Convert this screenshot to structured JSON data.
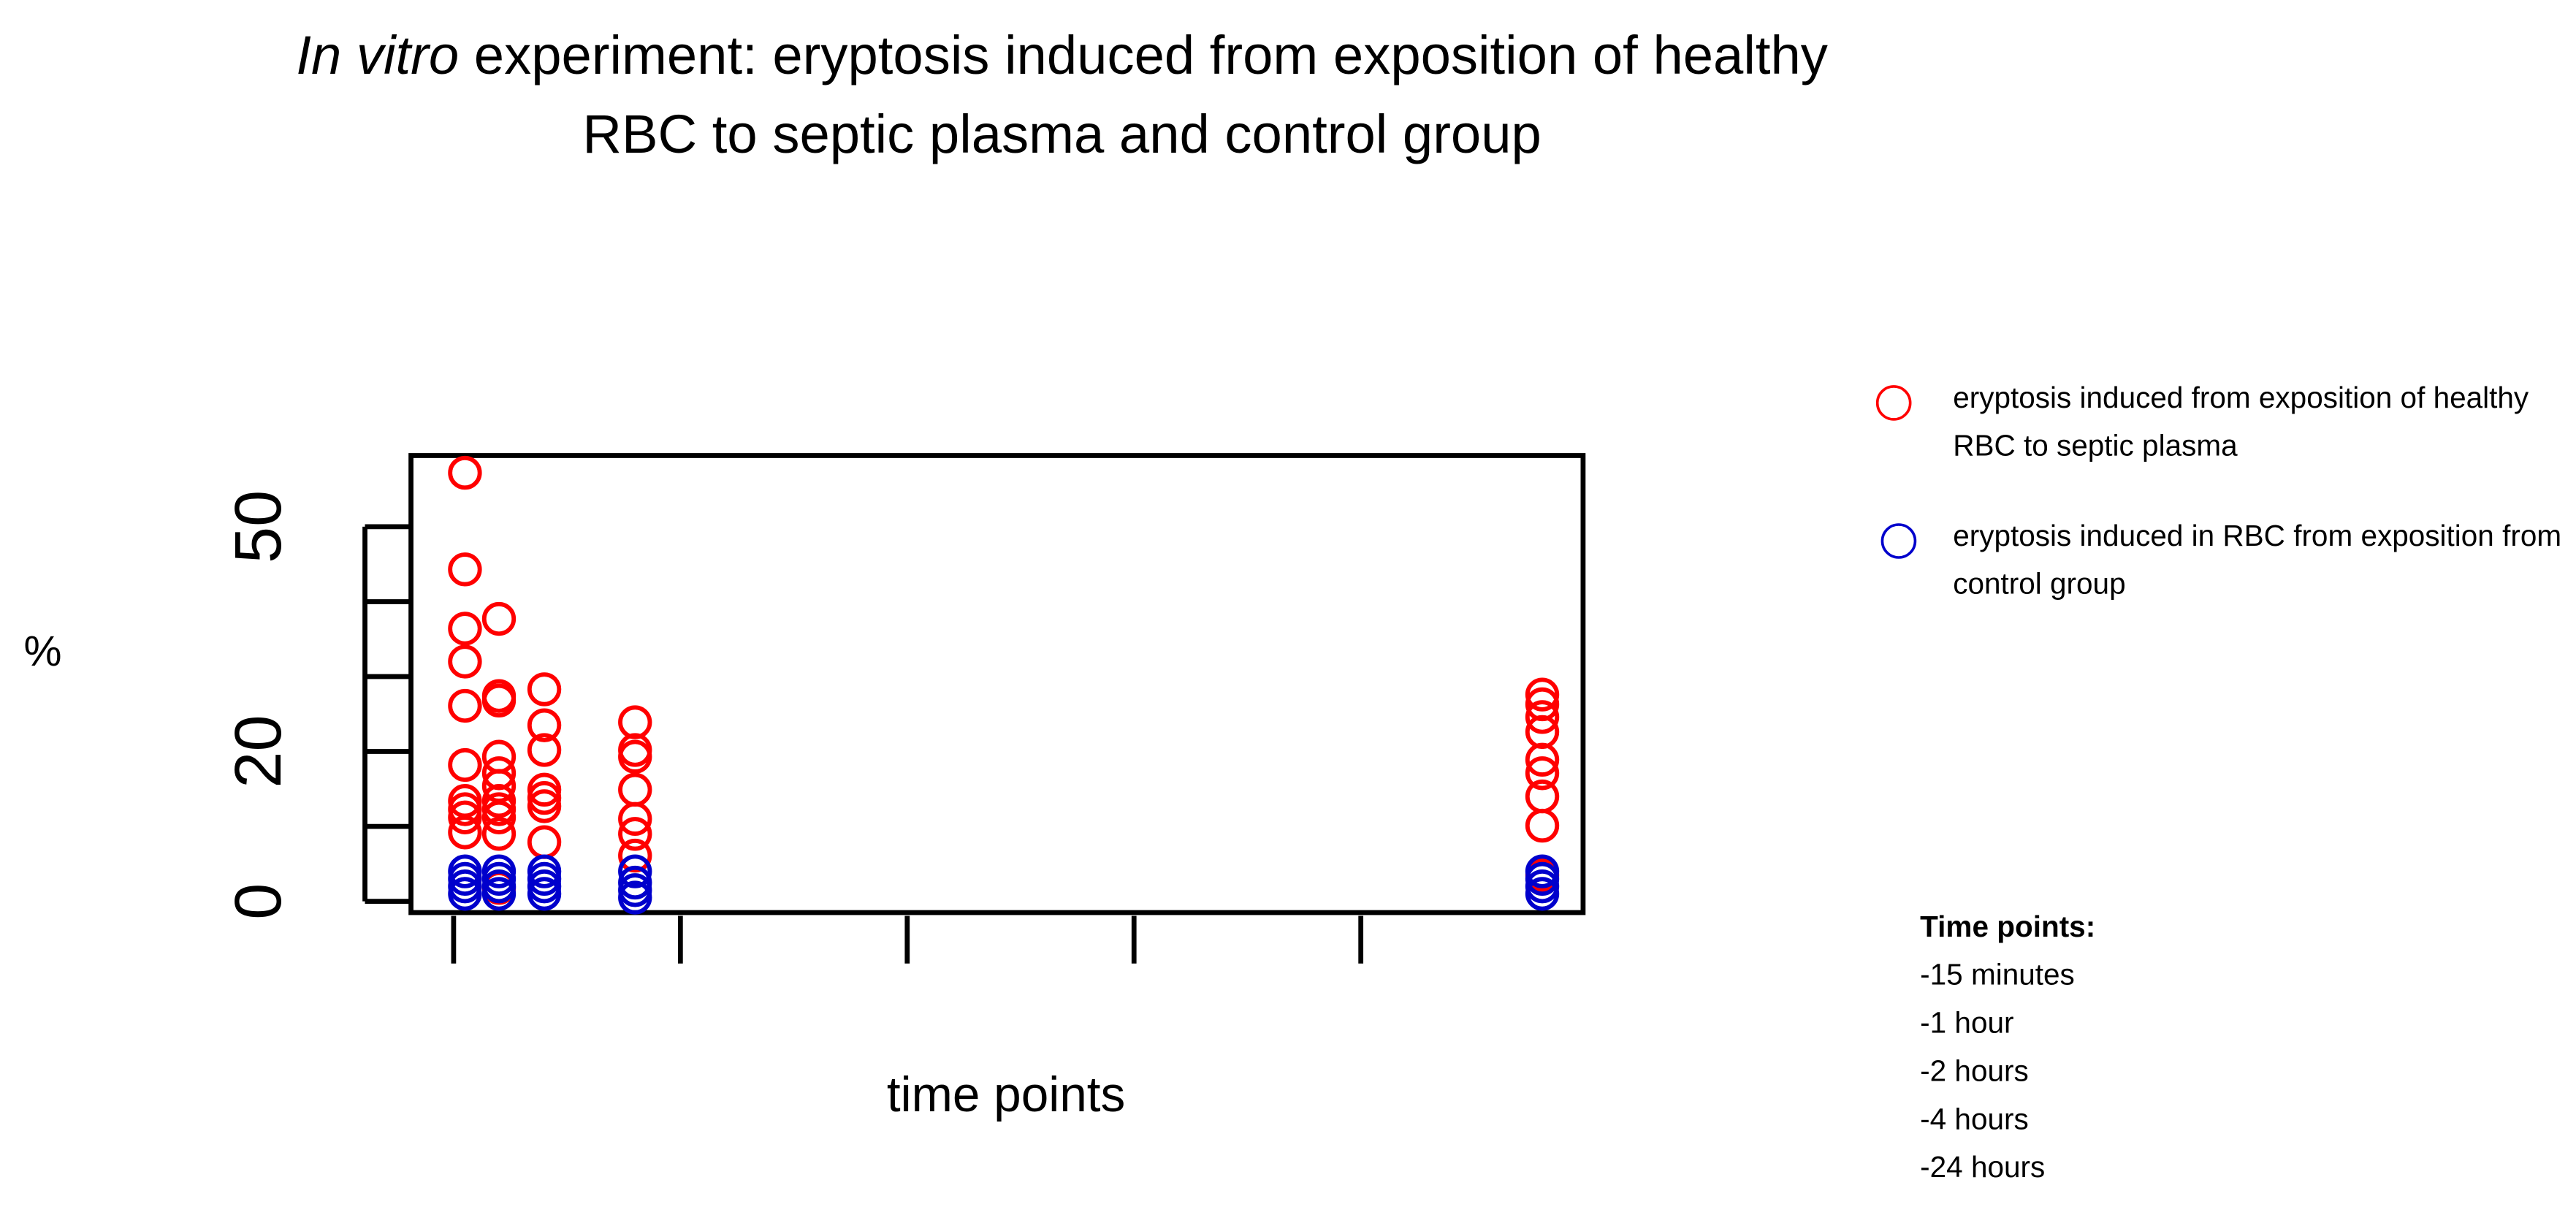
{
  "chart_data": {
    "type": "scatter",
    "title": {
      "italic": "In vitro",
      "lines": [
        " experiment: eryptosis induced from exposition of healthy",
        "RBC to septic plasma and control group"
      ]
    },
    "xlabel": "time points",
    "ylabel": "%",
    "xlim": [
      -0.94,
      24.9
    ],
    "xticks": [
      0,
      5,
      10,
      15,
      20
    ],
    "xtick_labels": false,
    "ylim": [
      -1.5,
      59.5
    ],
    "yticks": [
      0,
      20,
      50
    ],
    "yminor_ticks": [
      10,
      30,
      40
    ],
    "series": [
      {
        "name": "eryptosis induced from exposition of healthy RBC to septic plasma",
        "color": "#ff0000",
        "x": [
          0.25,
          0.25,
          0.25,
          0.25,
          0.25,
          0.25,
          0.25,
          0.25,
          0.25,
          0.25,
          1,
          1,
          1,
          1,
          1,
          1,
          1,
          1,
          1,
          1,
          1,
          2,
          2,
          2,
          2,
          2,
          2,
          2,
          4,
          4,
          4,
          4,
          4,
          4,
          4,
          24,
          24,
          24,
          24,
          24,
          24,
          24,
          24,
          24
        ],
        "values": [
          57.2,
          44.3,
          36.4,
          32,
          26.1,
          18.2,
          13.4,
          12.3,
          11.2,
          9.2,
          37.7,
          27.4,
          26.8,
          19.3,
          17.1,
          15.4,
          13.4,
          12.3,
          11.2,
          9,
          1.8,
          28.3,
          23.5,
          20.2,
          14.9,
          13.8,
          12.7,
          7.9,
          23.9,
          20.2,
          19.3,
          14.9,
          11,
          9,
          6.1,
          27.6,
          26.3,
          24.6,
          22.6,
          18.9,
          17.1,
          14,
          10.1,
          3.5
        ]
      },
      {
        "name": "eryptosis induced in RBC from exposition from control group",
        "color": "#0000cc",
        "x": [
          0.25,
          0.25,
          0.25,
          0.25,
          1,
          1,
          1,
          1,
          2,
          2,
          2,
          2,
          4,
          4,
          4,
          4,
          24,
          24,
          24,
          24
        ],
        "values": [
          1,
          2,
          3,
          4,
          1,
          2,
          3,
          4,
          1,
          2,
          3,
          4,
          0.5,
          1.5,
          2.5,
          4,
          1,
          2,
          3,
          4
        ]
      }
    ],
    "notes": {
      "heading": "Time points:",
      "items": [
        "-15 minutes",
        "-1 hour",
        "-2 hours",
        "-4 hours",
        "-24 hours"
      ]
    }
  }
}
